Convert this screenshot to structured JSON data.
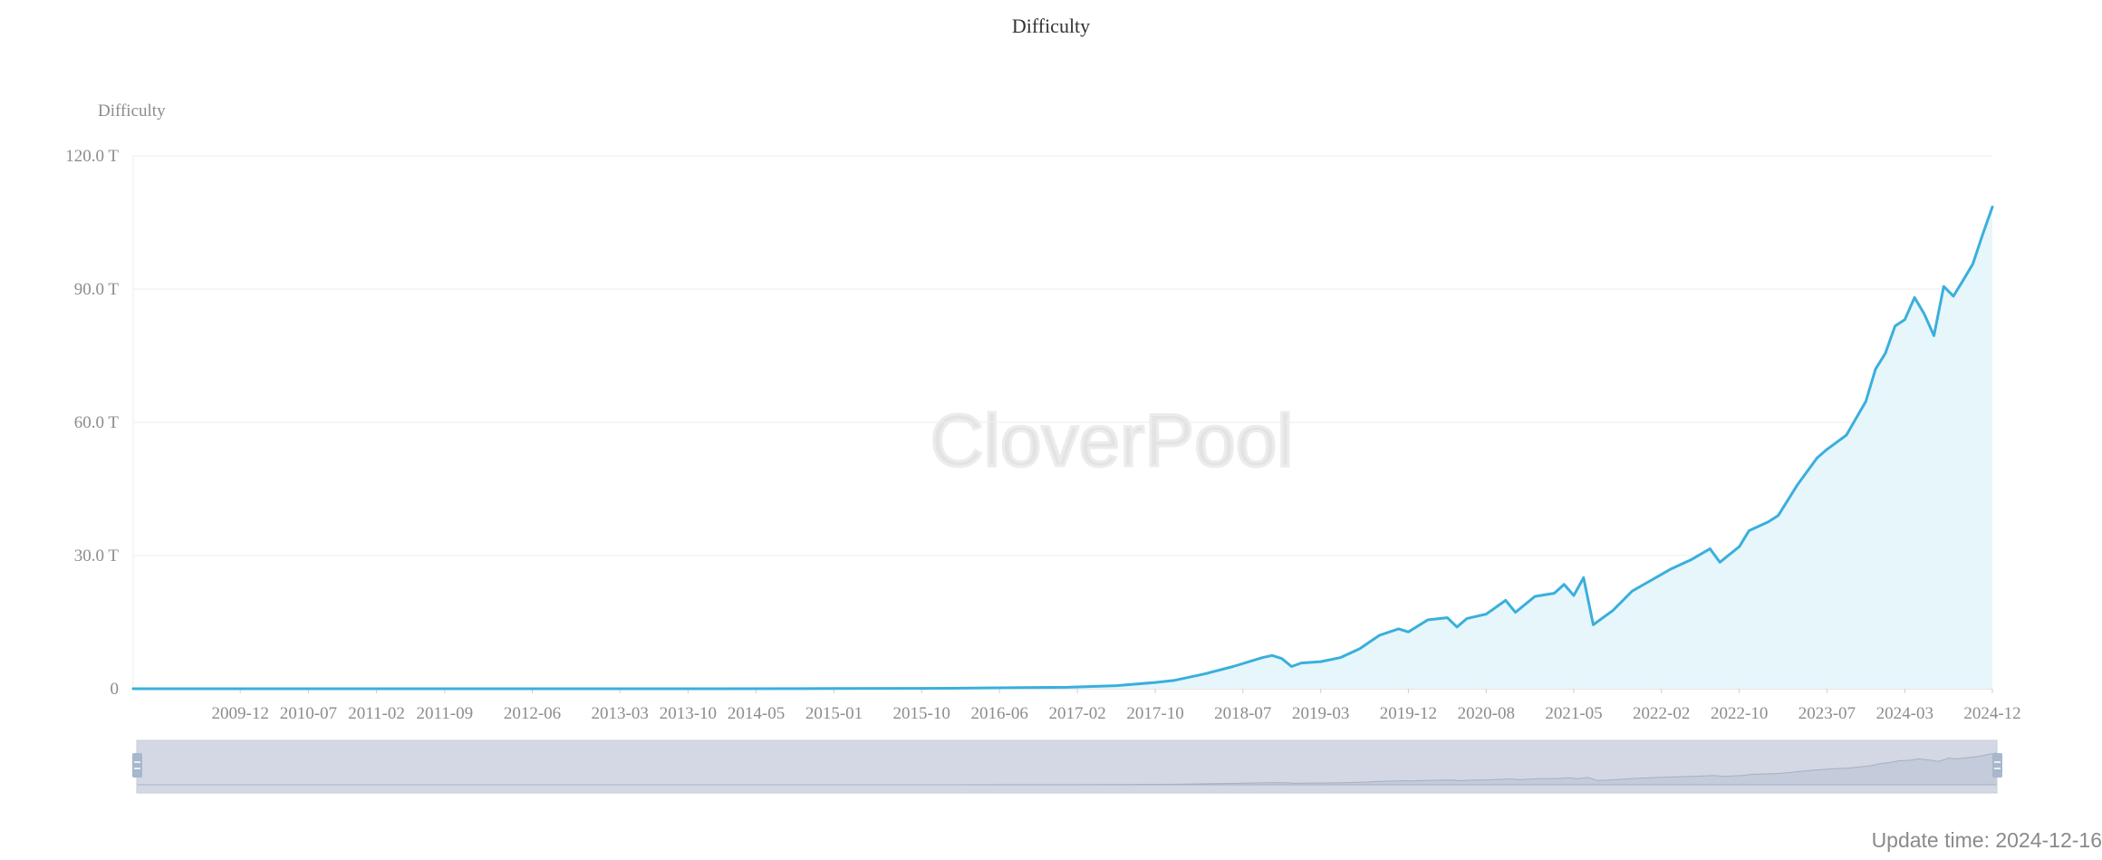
{
  "chart_data": {
    "type": "area",
    "title": "Difficulty",
    "ylabel": "Difficulty",
    "xlabel": "",
    "ylim": [
      0,
      120
    ],
    "y_unit": "T",
    "y_ticks": [
      {
        "value": 0,
        "label": "0"
      },
      {
        "value": 30,
        "label": "30.0 T"
      },
      {
        "value": 60,
        "label": "60.0 T"
      },
      {
        "value": 90,
        "label": "90.0 T"
      },
      {
        "value": 120,
        "label": "120.0 T"
      }
    ],
    "x_range": [
      "2009-01",
      "2024-12"
    ],
    "x_ticks": [
      "2009-12",
      "2010-07",
      "2011-02",
      "2011-09",
      "2012-06",
      "2013-03",
      "2013-10",
      "2014-05",
      "2015-01",
      "2015-10",
      "2016-06",
      "2017-02",
      "2017-10",
      "2018-07",
      "2019-03",
      "2019-12",
      "2020-08",
      "2021-05",
      "2022-02",
      "2022-10",
      "2023-07",
      "2024-03",
      "2024-12"
    ],
    "grid": true,
    "line_color": "#3aafdc",
    "area_color": "#e6f6fb",
    "watermark": "CloverPool",
    "series": [
      {
        "points": [
          [
            "2009-01",
            0
          ],
          [
            "2012-01",
            0.001
          ],
          [
            "2014-01",
            0.0009
          ],
          [
            "2015-01",
            0.04
          ],
          [
            "2016-01",
            0.1
          ],
          [
            "2016-06",
            0.2
          ],
          [
            "2017-01",
            0.32
          ],
          [
            "2017-06",
            0.7
          ],
          [
            "2017-10",
            1.4
          ],
          [
            "2017-12",
            1.9
          ],
          [
            "2018-03",
            3.3
          ],
          [
            "2018-06",
            5.0
          ],
          [
            "2018-09",
            7.0
          ],
          [
            "2018-10",
            7.5
          ],
          [
            "2018-11",
            6.8
          ],
          [
            "2018-12",
            5.0
          ],
          [
            "2019-01",
            5.8
          ],
          [
            "2019-03",
            6.1
          ],
          [
            "2019-05",
            7.0
          ],
          [
            "2019-07",
            9.0
          ],
          [
            "2019-09",
            12.0
          ],
          [
            "2019-11",
            13.5
          ],
          [
            "2019-12",
            12.8
          ],
          [
            "2020-02",
            15.5
          ],
          [
            "2020-04",
            16.0
          ],
          [
            "2020-05",
            13.9
          ],
          [
            "2020-06",
            15.8
          ],
          [
            "2020-08",
            16.8
          ],
          [
            "2020-10",
            19.9
          ],
          [
            "2020-11",
            17.2
          ],
          [
            "2021-01",
            20.8
          ],
          [
            "2021-03",
            21.5
          ],
          [
            "2021-04",
            23.5
          ],
          [
            "2021-05",
            21.0
          ],
          [
            "2021-06",
            25.0
          ],
          [
            "2021-07",
            14.4
          ],
          [
            "2021-09",
            17.6
          ],
          [
            "2021-11",
            22.0
          ],
          [
            "2022-01",
            24.5
          ],
          [
            "2022-03",
            27.0
          ],
          [
            "2022-05",
            29.0
          ],
          [
            "2022-07",
            31.5
          ],
          [
            "2022-08",
            28.5
          ],
          [
            "2022-10",
            32.0
          ],
          [
            "2022-11",
            35.6
          ],
          [
            "2023-01",
            37.6
          ],
          [
            "2023-02",
            39.0
          ],
          [
            "2023-04",
            46.0
          ],
          [
            "2023-06",
            52.0
          ],
          [
            "2023-07",
            53.9
          ],
          [
            "2023-09",
            57.1
          ],
          [
            "2023-11",
            64.7
          ],
          [
            "2023-12",
            72.0
          ],
          [
            "2024-01",
            75.5
          ],
          [
            "2024-02",
            81.7
          ],
          [
            "2024-03",
            83.1
          ],
          [
            "2024-04",
            88.1
          ],
          [
            "2024-05",
            84.4
          ],
          [
            "2024-06",
            79.5
          ],
          [
            "2024-07",
            90.6
          ],
          [
            "2024-08",
            88.4
          ],
          [
            "2024-09",
            92.0
          ],
          [
            "2024-10",
            95.7
          ],
          [
            "2024-11",
            102.3
          ],
          [
            "2024-12",
            108.5
          ]
        ]
      }
    ]
  },
  "footer": {
    "update_time": "Update time: 2024-12-16"
  }
}
